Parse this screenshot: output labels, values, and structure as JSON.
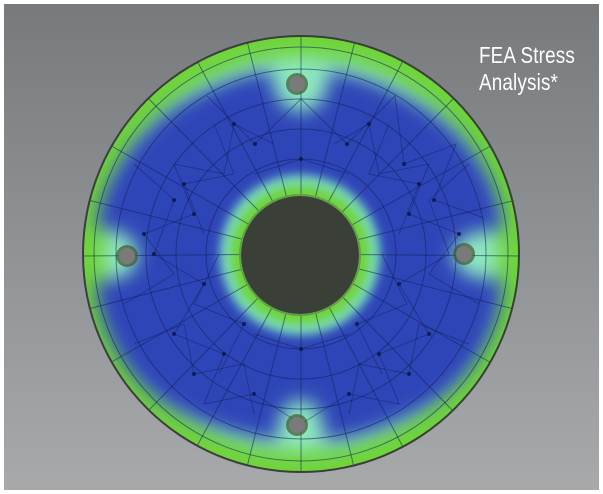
{
  "caption": {
    "line1": "FEA Stress",
    "line2": "Analysis*"
  },
  "colors": {
    "background_top": "#777a7d",
    "background_bottom": "#a7a9ab",
    "low_stress": "#2f45b8",
    "mid_stress": "#5fd0c8",
    "high_stress": "#6fd43a",
    "mesh_lines": "#10205a",
    "bolt_holes": "#7a7a7a"
  }
}
